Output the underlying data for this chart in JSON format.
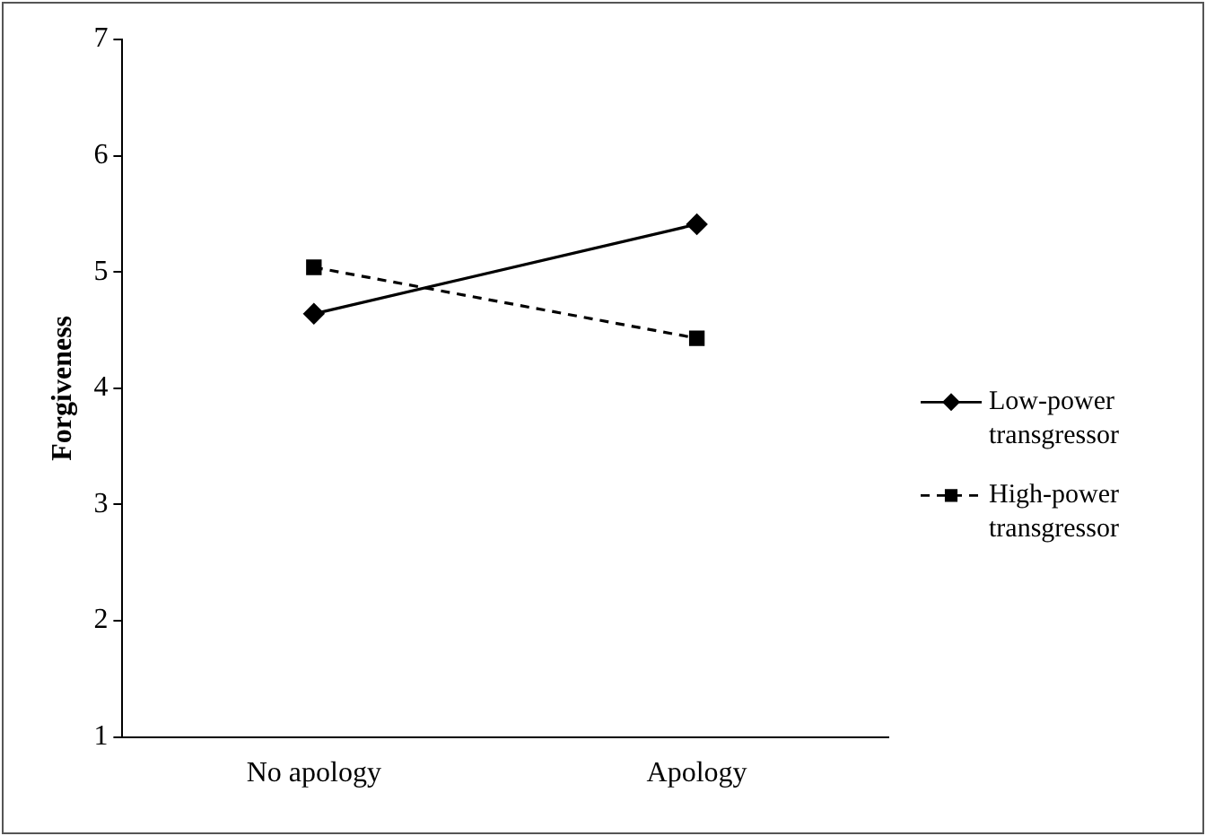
{
  "chart_data": {
    "type": "line",
    "ylabel": "Forgiveness",
    "categories": [
      "No apology",
      "Apology"
    ],
    "series": [
      {
        "name": "Low-power transgressor",
        "color": "#000000",
        "values": [
          4.64,
          5.41
        ],
        "marker": "diamond",
        "line_style": "solid"
      },
      {
        "name": "High-power transgressor",
        "color": "#000000",
        "values": [
          5.04,
          4.43
        ],
        "marker": "square",
        "line_style": "dashed"
      }
    ],
    "ylim": [
      1,
      7
    ],
    "yticks": [
      1,
      2,
      3,
      4,
      5,
      6,
      7
    ],
    "grid": false,
    "legend": "right"
  }
}
